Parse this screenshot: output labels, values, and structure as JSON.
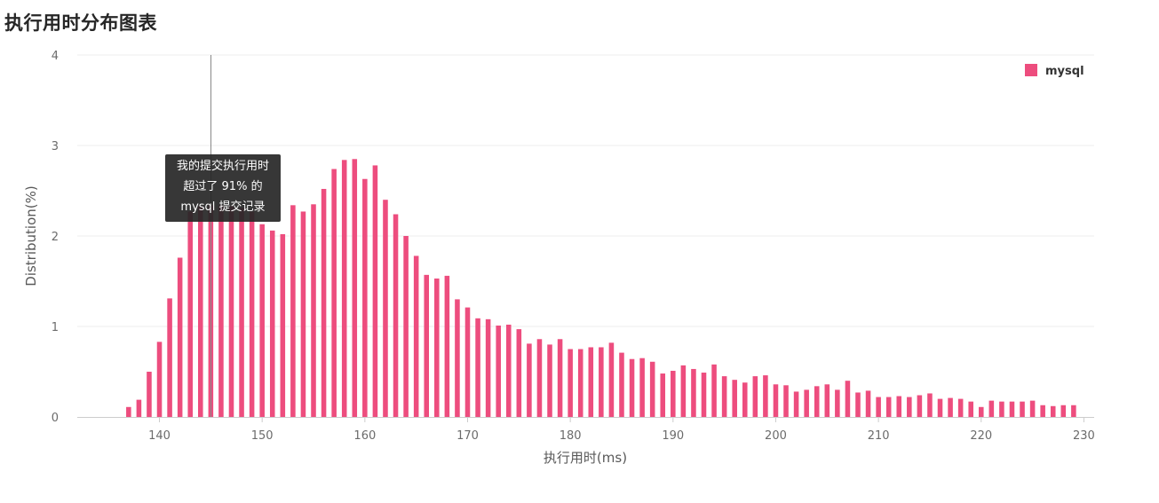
{
  "page": {
    "title": "执行用时分布图表"
  },
  "tooltip": {
    "lines": [
      "我的提交执行用时",
      "超过了 91% 的",
      "mysql 提交记录"
    ],
    "marker_x": 145
  },
  "colors": {
    "bar": "#ed4d7e",
    "grid": "#eeeeee",
    "axis": "#cccccc",
    "marker": "#888888"
  },
  "chart_data": {
    "type": "bar",
    "xlabel": "执行用时(ms)",
    "ylabel": "Distribution(%)",
    "xlim": [
      132,
      231
    ],
    "ylim": [
      0,
      4
    ],
    "xticks": [
      140,
      150,
      160,
      170,
      180,
      190,
      200,
      210,
      220,
      230
    ],
    "yticks": [
      0,
      1,
      2,
      3,
      4
    ],
    "legend": "top-right",
    "grid": true,
    "series": [
      {
        "name": "mysql",
        "x": [
          137,
          138,
          139,
          140,
          141,
          142,
          143,
          144,
          145,
          146,
          147,
          148,
          149,
          150,
          151,
          152,
          153,
          154,
          155,
          156,
          157,
          158,
          159,
          160,
          161,
          162,
          163,
          164,
          165,
          166,
          167,
          168,
          169,
          170,
          171,
          172,
          173,
          174,
          175,
          176,
          177,
          178,
          179,
          180,
          181,
          182,
          183,
          184,
          185,
          186,
          187,
          188,
          189,
          190,
          191,
          192,
          193,
          194,
          195,
          196,
          197,
          198,
          199,
          200,
          201,
          202,
          203,
          204,
          205,
          206,
          207,
          208,
          209,
          210,
          211,
          212,
          213,
          214,
          215,
          216,
          217,
          218,
          219,
          220,
          221,
          222,
          223,
          224,
          225,
          226,
          227,
          228,
          229
        ],
        "values": [
          0.11,
          0.19,
          0.5,
          0.83,
          1.31,
          1.76,
          2.27,
          2.33,
          2.34,
          2.34,
          2.33,
          2.31,
          2.27,
          2.13,
          2.06,
          2.02,
          2.34,
          2.27,
          2.35,
          2.52,
          2.74,
          2.84,
          2.85,
          2.63,
          2.78,
          2.4,
          2.24,
          2.0,
          1.78,
          1.57,
          1.53,
          1.56,
          1.3,
          1.21,
          1.09,
          1.08,
          1.01,
          1.02,
          0.97,
          0.81,
          0.86,
          0.8,
          0.86,
          0.75,
          0.75,
          0.77,
          0.77,
          0.82,
          0.71,
          0.64,
          0.65,
          0.61,
          0.48,
          0.51,
          0.57,
          0.53,
          0.49,
          0.58,
          0.45,
          0.41,
          0.38,
          0.45,
          0.46,
          0.36,
          0.35,
          0.28,
          0.3,
          0.34,
          0.36,
          0.3,
          0.4,
          0.27,
          0.29,
          0.22,
          0.22,
          0.23,
          0.22,
          0.24,
          0.26,
          0.2,
          0.21,
          0.2,
          0.17,
          0.11,
          0.18,
          0.17,
          0.17,
          0.17,
          0.18,
          0.13,
          0.12,
          0.13,
          0.13
        ]
      }
    ]
  }
}
